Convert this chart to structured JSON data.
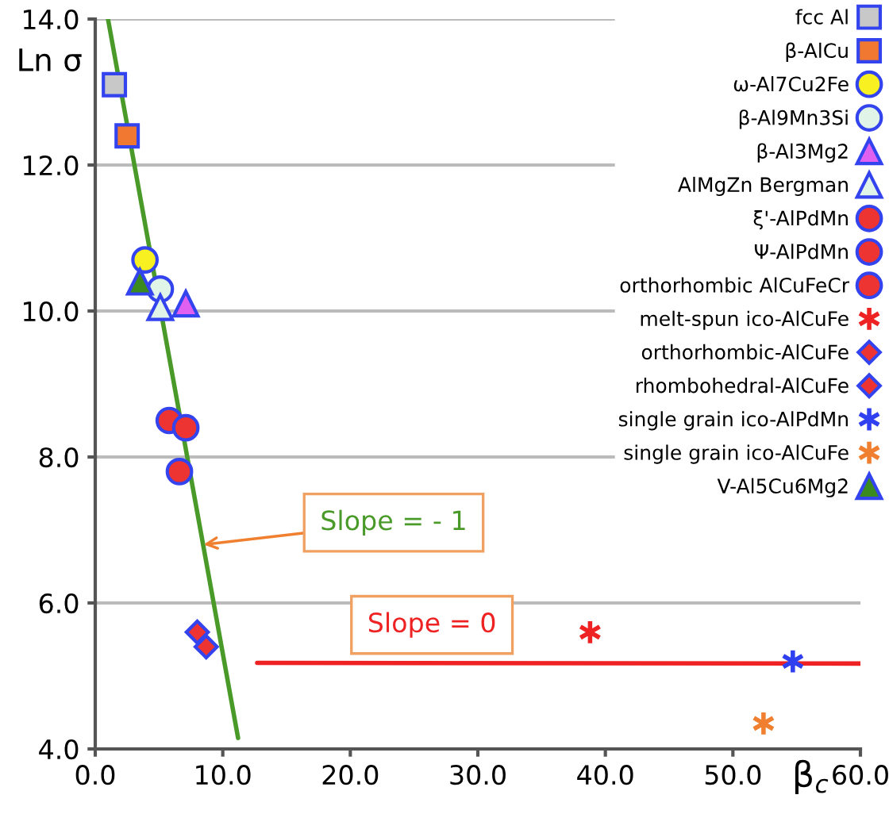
{
  "chart_data": {
    "type": "scatter",
    "xlabel": "β$_{c}$",
    "ylabel": "Ln σ",
    "xlim": [
      0,
      60
    ],
    "ylim": [
      4,
      14
    ],
    "xticks": [
      {
        "value": 0,
        "label": "0.0"
      },
      {
        "value": 10,
        "label": "10.0"
      },
      {
        "value": 20,
        "label": "20.0"
      },
      {
        "value": 30,
        "label": "30.0"
      },
      {
        "value": 40,
        "label": "40.0"
      },
      {
        "value": 50,
        "label": "50.0"
      },
      {
        "value": 60,
        "label": "60.0"
      }
    ],
    "yticks": [
      {
        "value": 4,
        "label": "4.0"
      },
      {
        "value": 6,
        "label": "6.0"
      },
      {
        "value": 8,
        "label": "8.0"
      },
      {
        "value": 10,
        "label": "10.0"
      },
      {
        "value": 12,
        "label": "12.0"
      },
      {
        "value": 14,
        "label": "14.0"
      }
    ],
    "grid": "y",
    "legend": "top right",
    "series": [
      {
        "type": "line",
        "color": "#4a9a2a",
        "x": [
          1.0,
          11.2
        ],
        "values": [
          14.0,
          4.15
        ],
        "marker": "none"
      },
      {
        "type": "line",
        "color": "#ee2222",
        "x": [
          12.7,
          60
        ],
        "values": [
          5.18,
          5.17
        ],
        "marker": "none"
      },
      {
        "name": "fcc Al",
        "color": "#c8c8c8",
        "marker": "square",
        "x": [
          1.5
        ],
        "values": [
          13.1
        ]
      },
      {
        "name": "β-AlCu",
        "color": "#f07830",
        "marker": "square",
        "x": [
          2.5
        ],
        "values": [
          12.4
        ]
      },
      {
        "name": "ω-Al7Cu2Fe",
        "color": "#f8f020",
        "marker": "circle",
        "x": [
          3.9
        ],
        "values": [
          10.7
        ]
      },
      {
        "name": "β-Al9Mn3Si",
        "color": "#e0f4e8",
        "marker": "circle",
        "x": [
          5.1
        ],
        "values": [
          10.3
        ]
      },
      {
        "name": "β-Al3Mg2",
        "color": "#e060f0",
        "marker": "triangle",
        "x": [
          7.1
        ],
        "values": [
          10.1
        ]
      },
      {
        "name": "AlMgZn Bergman",
        "color": "#e0f4e8",
        "marker": "triangle",
        "x": [
          5.1
        ],
        "values": [
          10.05
        ]
      },
      {
        "name": "ξ'-AlPdMn",
        "color": "#ee3333",
        "marker": "circle",
        "x": [
          5.8
        ],
        "values": [
          8.5
        ]
      },
      {
        "name": "Ψ-AlPdMn",
        "color": "#ee3333",
        "marker": "circle",
        "x": [
          7.1
        ],
        "values": [
          8.4
        ]
      },
      {
        "name": "orthorhombic AlCuFeCr",
        "color": "#ee3333",
        "marker": "circle",
        "x": [
          6.6
        ],
        "values": [
          7.8
        ]
      },
      {
        "name": "melt-spun ico-AlCuFe",
        "color": "#ee2222",
        "marker": "cross",
        "x": [
          38.8
        ],
        "values": [
          5.6
        ]
      },
      {
        "name": "orthorhombic-AlCuFe",
        "color": "#ee3333",
        "marker": "diamond",
        "x": [
          8.0
        ],
        "values": [
          5.6
        ]
      },
      {
        "name": "rhombohedral-AlCuFe",
        "color": "#ee3333",
        "marker": "diamond",
        "x": [
          8.7
        ],
        "values": [
          5.4
        ]
      },
      {
        "name": "single grain ico-AlPdMn",
        "color": "#3040f0",
        "marker": "cross",
        "x": [
          54.7
        ],
        "values": [
          5.2
        ]
      },
      {
        "name": "single grain ico-AlCuFe",
        "color": "#f08030",
        "marker": "cross",
        "x": [
          52.4
        ],
        "values": [
          4.35
        ]
      },
      {
        "name": "V-Al5Cu6Mg2",
        "color": "#3a8a20",
        "marker": "triangle",
        "x": [
          3.5
        ],
        "values": [
          10.4
        ]
      }
    ],
    "annotations": [
      {
        "text": "Slope = - 1",
        "x": 8.5,
        "y": 6.8
      },
      "Slope = 0"
    ]
  }
}
